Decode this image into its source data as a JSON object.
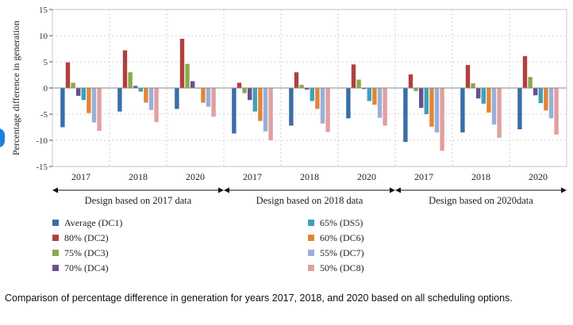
{
  "caption": "Comparison of percentage difference in generation for years 2017, 2018, and 2020 based on all scheduling options.",
  "chart_data": {
    "type": "bar",
    "ylabel": "Percentage difference in generation",
    "ylim": [
      -15,
      15
    ],
    "yticks": [
      15,
      10,
      5,
      0,
      -5,
      -10,
      -15
    ],
    "grid": true,
    "legend_position": "bottom",
    "groups": [
      {
        "label": "Design based on 2017 data",
        "categories": [
          "2017",
          "2018",
          "2020"
        ]
      },
      {
        "label": "Design based on 2018 data",
        "categories": [
          "2017",
          "2018",
          "2020"
        ]
      },
      {
        "label": "Design based on 2020data",
        "categories": [
          "2017",
          "2018",
          "2020"
        ]
      }
    ],
    "series": [
      {
        "name": "Average (DC1)",
        "color": "#3a6ea5",
        "values": [
          -7.5,
          -4.5,
          -4.0,
          -8.7,
          -7.2,
          -5.8,
          -10.3,
          -8.5,
          -7.9
        ]
      },
      {
        "name": "80% (DC2)",
        "color": "#b0403e",
        "values": [
          4.9,
          7.2,
          9.4,
          1.0,
          3.0,
          4.5,
          2.6,
          4.4,
          6.1
        ]
      },
      {
        "name": "75% (DC3)",
        "color": "#8aaa4b",
        "values": [
          1.0,
          3.0,
          4.6,
          -1.0,
          0.6,
          1.6,
          -0.6,
          0.9,
          2.1
        ]
      },
      {
        "name": "70% (DC4)",
        "color": "#6a4f8f",
        "values": [
          -1.5,
          0.4,
          1.3,
          -2.3,
          -0.3,
          -0.2,
          -3.8,
          -2.0,
          -1.4
        ]
      },
      {
        "name": "65% (DS5)",
        "color": "#3fa0b8",
        "values": [
          -2.3,
          -0.7,
          -0.1,
          -4.5,
          -2.5,
          -2.5,
          -5.0,
          -3.0,
          -2.9
        ]
      },
      {
        "name": "60% (DC6)",
        "color": "#e0853a",
        "values": [
          -4.8,
          -2.8,
          -2.8,
          -6.3,
          -4.0,
          -3.2,
          -7.4,
          -4.7,
          -4.3
        ]
      },
      {
        "name": "55% (DC7)",
        "color": "#9aafd6",
        "values": [
          -6.6,
          -4.2,
          -3.6,
          -8.3,
          -6.8,
          -5.7,
          -8.5,
          -7.0,
          -5.8
        ]
      },
      {
        "name": "50% (DC8)",
        "color": "#e0a0a0",
        "values": [
          -8.2,
          -6.5,
          -5.5,
          -10.0,
          -8.4,
          -7.2,
          -12.0,
          -9.5,
          -8.9
        ]
      }
    ]
  }
}
